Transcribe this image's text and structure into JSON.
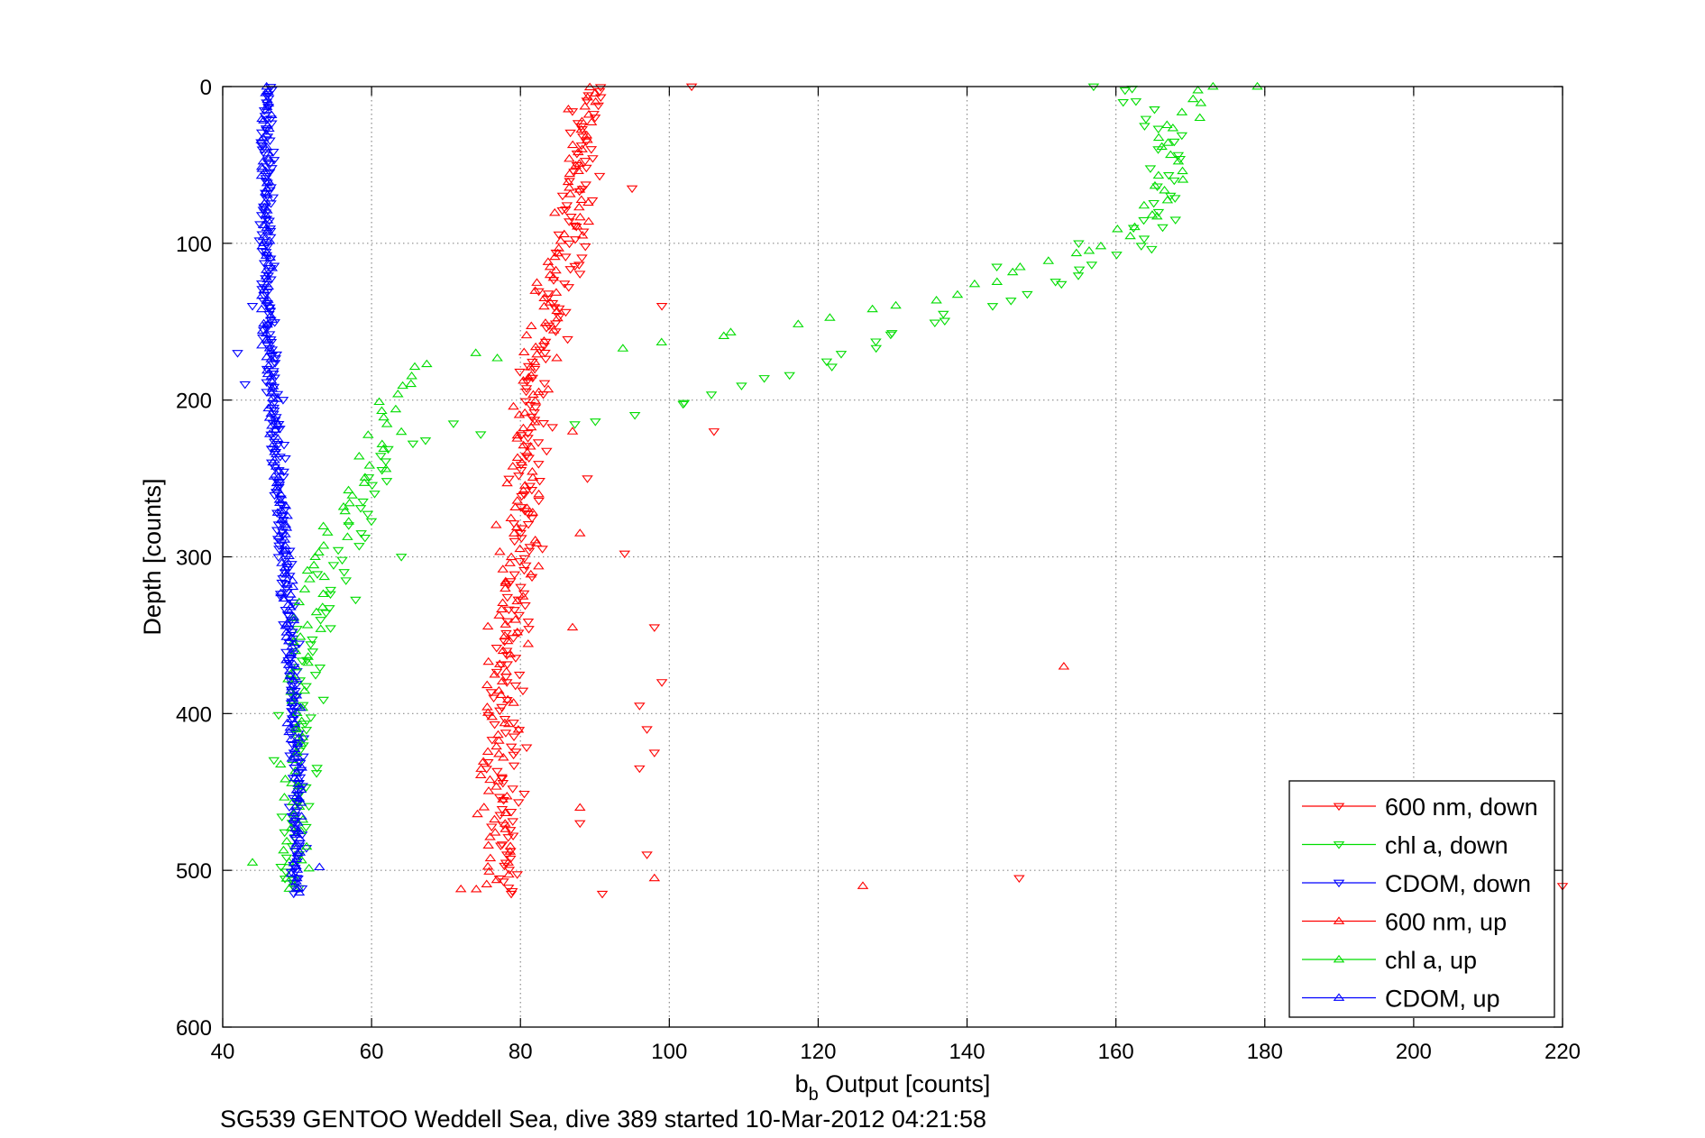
{
  "chart_data": {
    "type": "scatter",
    "title": "",
    "xlabel": "b",
    "xlabel_sub": "b",
    "xlabel_rest": " Output [counts]",
    "ylabel": "Depth [counts]",
    "caption": "SG539 GENTOO Weddell Sea, dive 389 started 10-Mar-2012 04:21:58",
    "xlim": [
      40,
      220
    ],
    "ylim": [
      0,
      600
    ],
    "y_reversed": true,
    "grid": true,
    "legend_position": "bottom-right",
    "xticks": [
      40,
      60,
      80,
      100,
      120,
      140,
      160,
      180,
      200,
      220
    ],
    "yticks": [
      0,
      100,
      200,
      300,
      400,
      500,
      600
    ],
    "series": [
      {
        "name": "600 nm, down",
        "color": "#ff0000",
        "marker": "down",
        "profile": [
          [
            0,
            89.5
          ],
          [
            50,
            88
          ],
          [
            100,
            87
          ],
          [
            150,
            84
          ],
          [
            200,
            82
          ],
          [
            250,
            81
          ],
          [
            300,
            80
          ],
          [
            350,
            79
          ],
          [
            400,
            78.5
          ],
          [
            450,
            78
          ],
          [
            500,
            78
          ],
          [
            515,
            79
          ]
        ],
        "spread": 2.2,
        "step": 2.5,
        "outliers": [
          [
            0,
            103
          ],
          [
            65,
            95
          ],
          [
            140,
            99
          ],
          [
            220,
            106
          ],
          [
            250,
            89
          ],
          [
            298,
            94
          ],
          [
            345,
            98
          ],
          [
            380,
            99
          ],
          [
            395,
            96
          ],
          [
            410,
            97
          ],
          [
            425,
            98
          ],
          [
            435,
            96
          ],
          [
            470,
            88
          ],
          [
            490,
            97
          ],
          [
            505,
            147
          ],
          [
            510,
            220
          ],
          [
            515,
            91
          ]
        ]
      },
      {
        "name": "chl a, down",
        "color": "#00dd00",
        "marker": "down",
        "profile": [
          [
            0,
            162
          ],
          [
            40,
            167
          ],
          [
            80,
            166
          ],
          [
            100,
            165
          ],
          [
            110,
            160
          ],
          [
            130,
            150
          ],
          [
            150,
            135
          ],
          [
            180,
            120
          ],
          [
            200,
            103
          ],
          [
            210,
            96
          ],
          [
            218,
            80
          ],
          [
            230,
            63
          ],
          [
            260,
            60
          ],
          [
            290,
            57
          ],
          [
            330,
            54
          ],
          [
            360,
            52
          ],
          [
            400,
            51
          ],
          [
            450,
            50
          ],
          [
            500,
            50
          ],
          [
            515,
            50
          ]
        ],
        "spread": 2.5,
        "step": 4,
        "outliers": [
          [
            0,
            157
          ],
          [
            85,
            168
          ],
          [
            100,
            155
          ],
          [
            115,
            144
          ],
          [
            215,
            71
          ],
          [
            300,
            64
          ]
        ]
      },
      {
        "name": "CDOM, down",
        "color": "#0000ff",
        "marker": "down",
        "profile": [
          [
            0,
            46
          ],
          [
            50,
            46
          ],
          [
            100,
            46
          ],
          [
            150,
            46
          ],
          [
            200,
            47
          ],
          [
            250,
            47.5
          ],
          [
            300,
            48
          ],
          [
            350,
            49
          ],
          [
            400,
            49.5
          ],
          [
            450,
            50
          ],
          [
            500,
            50
          ],
          [
            515,
            50
          ]
        ],
        "spread": 0.9,
        "step": 2,
        "outliers": [
          [
            140,
            44
          ],
          [
            170,
            42
          ],
          [
            190,
            43
          ]
        ]
      },
      {
        "name": "600 nm, up",
        "color": "#ff0000",
        "marker": "up",
        "profile": [
          [
            0,
            89
          ],
          [
            50,
            88.5
          ],
          [
            100,
            86
          ],
          [
            150,
            83
          ],
          [
            200,
            81
          ],
          [
            250,
            80
          ],
          [
            300,
            79.5
          ],
          [
            350,
            78
          ],
          [
            400,
            77
          ],
          [
            450,
            76.5
          ],
          [
            500,
            77
          ],
          [
            515,
            76
          ]
        ],
        "spread": 2.3,
        "step": 3,
        "outliers": [
          [
            220,
            87
          ],
          [
            285,
            88
          ],
          [
            345,
            87
          ],
          [
            370,
            153
          ],
          [
            460,
            88
          ],
          [
            510,
            126
          ],
          [
            512,
            72
          ],
          [
            505,
            98
          ]
        ]
      },
      {
        "name": "chl a, up",
        "color": "#00dd00",
        "marker": "up",
        "profile": [
          [
            0,
            172
          ],
          [
            30,
            168
          ],
          [
            60,
            167
          ],
          [
            80,
            165
          ],
          [
            100,
            160
          ],
          [
            110,
            150
          ],
          [
            130,
            140
          ],
          [
            150,
            120
          ],
          [
            160,
            105
          ],
          [
            170,
            90
          ],
          [
            175,
            67
          ],
          [
            190,
            64
          ],
          [
            220,
            62
          ],
          [
            250,
            60
          ],
          [
            270,
            56
          ],
          [
            300,
            53
          ],
          [
            350,
            51
          ],
          [
            400,
            50
          ],
          [
            450,
            50
          ],
          [
            500,
            50
          ],
          [
            515,
            50
          ]
        ],
        "spread": 2.0,
        "step": 4,
        "outliers": [
          [
            0,
            179
          ],
          [
            170,
            74
          ],
          [
            495,
            44
          ]
        ]
      },
      {
        "name": "CDOM, up",
        "color": "#0000ff",
        "marker": "up",
        "profile": [
          [
            0,
            46
          ],
          [
            50,
            45.5
          ],
          [
            100,
            46
          ],
          [
            150,
            46
          ],
          [
            200,
            46.5
          ],
          [
            250,
            47.5
          ],
          [
            300,
            48.5
          ],
          [
            350,
            49
          ],
          [
            400,
            49.5
          ],
          [
            450,
            50
          ],
          [
            500,
            50
          ],
          [
            515,
            50
          ]
        ],
        "spread": 0.8,
        "step": 2.5,
        "outliers": [
          [
            498,
            53
          ]
        ]
      }
    ]
  }
}
